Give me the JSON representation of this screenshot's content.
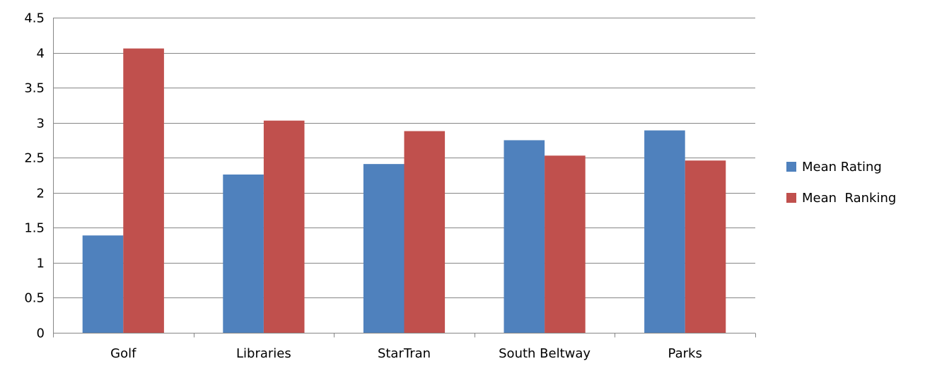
{
  "chart_data": {
    "type": "bar",
    "title": "",
    "xlabel": "",
    "ylabel": "",
    "categories": [
      "Golf",
      "Libraries",
      "StarTran",
      "South Beltway",
      "Parks"
    ],
    "series": [
      {
        "name": "Mean Rating",
        "color": "#4F81BD",
        "values": [
          1.39,
          2.26,
          2.41,
          2.75,
          2.89
        ]
      },
      {
        "name": "Mean  Ranking",
        "color": "#C0504D",
        "values": [
          4.06,
          3.03,
          2.88,
          2.53,
          2.46
        ]
      }
    ],
    "ylim": [
      0,
      4.5
    ],
    "yticks": [
      "0",
      "0.5",
      "1",
      "1.5",
      "2",
      "2.5",
      "3",
      "3.5",
      "4",
      "4.5"
    ],
    "grid": true,
    "legend_position": "right"
  }
}
